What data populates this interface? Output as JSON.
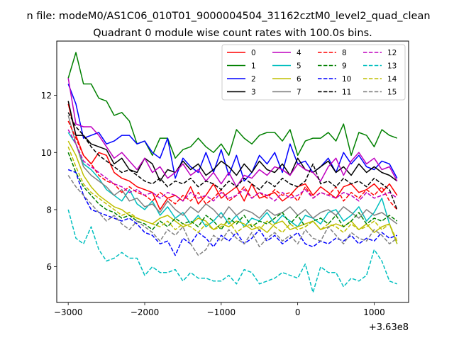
{
  "chart_data": {
    "type": "line",
    "suptitle": "n file: modeM0/AS1C06_010T01_9000004504_31162cztM0_level2_quad_clean",
    "title": "Quadrant 0 module wise count rates with 100.0s bins.",
    "xlabel": "",
    "ylabel": "",
    "x_offset_label": "+3.63e8",
    "xlim": [
      -3150,
      1450
    ],
    "ylim": [
      4.75,
      13.9
    ],
    "x_ticks": [
      -3000,
      -2000,
      -1000,
      0,
      1000
    ],
    "x_tick_labels": [
      "−3000",
      "−2000",
      "−1000",
      "0",
      "1000"
    ],
    "y_ticks": [
      6,
      8,
      10,
      12
    ],
    "y_tick_labels": [
      "6",
      "8",
      "10",
      "12"
    ],
    "grid": false,
    "legend_position": "top-right",
    "x_start": -3000,
    "x_step": 100,
    "series": [
      {
        "name": "0",
        "color": "#ff0000",
        "dash": "solid",
        "values": [
          11.7,
          10.6,
          9.9,
          9.6,
          10.0,
          9.9,
          9.3,
          9.1,
          9.0,
          8.8,
          8.7,
          8.6,
          8.0,
          8.4,
          8.5,
          8.3,
          8.8,
          8.2,
          8.5,
          8.9,
          8.4,
          8.6,
          8.8,
          8.3,
          8.9,
          8.4,
          8.5,
          8.6,
          8.3,
          8.5,
          8.8,
          8.9,
          8.5,
          8.8,
          8.6,
          8.4,
          8.8,
          8.9,
          8.6,
          8.7,
          8.9,
          8.6,
          8.9,
          8.5
        ]
      },
      {
        "name": "1",
        "color": "#008000",
        "dash": "solid",
        "values": [
          12.6,
          13.5,
          12.4,
          12.4,
          11.9,
          11.8,
          11.3,
          11.4,
          11.1,
          10.3,
          10.4,
          9.9,
          10.5,
          10.5,
          9.8,
          10.1,
          10.2,
          10.5,
          10.2,
          10.0,
          10.3,
          9.9,
          10.8,
          10.5,
          10.3,
          10.6,
          10.7,
          10.7,
          10.4,
          10.8,
          9.9,
          10.4,
          10.5,
          10.5,
          10.7,
          10.4,
          11.0,
          9.9,
          10.7,
          10.6,
          10.2,
          10.8,
          10.6,
          10.5
        ]
      },
      {
        "name": "2",
        "color": "#0000ff",
        "dash": "solid",
        "values": [
          12.4,
          11.7,
          10.5,
          10.6,
          10.7,
          10.3,
          10.4,
          10.6,
          10.6,
          10.3,
          10.4,
          10.0,
          9.8,
          10.5,
          9.1,
          9.8,
          9.5,
          9.3,
          10.0,
          9.3,
          10.1,
          9.2,
          9.9,
          9.0,
          9.3,
          9.9,
          9.6,
          10.0,
          9.3,
          10.3,
          9.6,
          9.7,
          9.3,
          9.5,
          9.8,
          9.3,
          10.0,
          9.6,
          9.9,
          9.5,
          9.4,
          9.7,
          9.6,
          9.1
        ]
      },
      {
        "name": "3",
        "color": "#000000",
        "dash": "solid",
        "values": [
          11.8,
          10.6,
          10.6,
          10.3,
          10.2,
          10.1,
          9.6,
          9.8,
          9.4,
          9.3,
          9.8,
          9.6,
          9.0,
          9.4,
          9.3,
          9.7,
          9.4,
          9.6,
          9.2,
          9.4,
          9.7,
          9.5,
          9.2,
          9.6,
          9.3,
          9.7,
          9.4,
          9.3,
          9.6,
          9.2,
          9.8,
          9.4,
          9.3,
          9.5,
          9.7,
          9.3,
          9.5,
          9.2,
          9.6,
          9.3,
          9.5,
          9.3,
          9.2,
          9.0
        ]
      },
      {
        "name": "4",
        "color": "#bf00bf",
        "dash": "solid",
        "values": [
          12.6,
          11.0,
          10.9,
          10.9,
          10.6,
          10.2,
          9.8,
          10.0,
          9.7,
          9.4,
          9.8,
          9.3,
          9.5,
          9.1,
          9.3,
          9.6,
          9.2,
          9.4,
          9.0,
          9.3,
          8.9,
          9.3,
          8.8,
          9.2,
          9.1,
          9.4,
          9.2,
          9.5,
          9.4,
          9.2,
          9.6,
          9.4,
          9.3,
          9.0,
          9.5,
          9.8,
          9.2,
          9.7,
          10.0,
          9.6,
          9.8,
          9.4,
          9.5,
          9.0
        ]
      },
      {
        "name": "5",
        "color": "#00bfbf",
        "dash": "solid",
        "values": [
          10.7,
          10.3,
          9.6,
          9.4,
          9.1,
          8.7,
          8.5,
          8.3,
          8.7,
          8.2,
          8.0,
          8.3,
          7.8,
          8.1,
          7.7,
          7.9,
          7.5,
          7.8,
          7.4,
          7.6,
          7.9,
          7.5,
          7.8,
          7.4,
          7.7,
          7.6,
          7.9,
          7.5,
          7.8,
          7.6,
          7.4,
          7.8,
          7.7,
          7.5,
          7.9,
          8.0,
          7.6,
          7.8,
          8.1,
          7.6,
          7.9,
          8.4,
          7.5,
          6.8
        ]
      },
      {
        "name": "6",
        "color": "#bfbf00",
        "dash": "solid",
        "values": [
          10.4,
          9.9,
          9.2,
          8.8,
          8.5,
          8.3,
          8.1,
          8.0,
          7.8,
          7.7,
          7.6,
          7.5,
          7.7,
          7.8,
          7.6,
          7.4,
          7.5,
          7.7,
          7.6,
          7.3,
          7.5,
          7.4,
          7.6,
          7.5,
          7.3,
          7.4,
          7.2,
          7.5,
          7.6,
          7.3,
          7.4,
          7.5,
          7.6,
          7.3,
          7.4,
          7.5,
          7.4,
          7.6,
          7.3,
          7.5,
          7.2,
          7.4,
          7.5,
          6.8
        ]
      },
      {
        "name": "7",
        "color": "#808080",
        "dash": "solid",
        "values": [
          11.3,
          10.3,
          9.5,
          9.2,
          9.0,
          8.8,
          8.5,
          8.7,
          8.3,
          8.4,
          8.1,
          8.2,
          7.9,
          8.3,
          8.0,
          7.8,
          8.1,
          7.9,
          8.2,
          8.0,
          7.7,
          8.1,
          7.8,
          8.0,
          7.9,
          7.7,
          8.0,
          7.8,
          7.9,
          8.1,
          7.8,
          8.0,
          7.7,
          7.9,
          8.0,
          7.8,
          8.1,
          7.9,
          7.7,
          8.0,
          7.8,
          7.9,
          7.7,
          7.5
        ]
      },
      {
        "name": "8",
        "color": "#ff0000",
        "dash": "dashed",
        "values": [
          11.1,
          10.5,
          9.9,
          9.6,
          9.2,
          9.0,
          8.9,
          8.6,
          8.8,
          8.6,
          8.5,
          8.3,
          8.6,
          8.4,
          8.2,
          8.5,
          8.3,
          8.6,
          8.2,
          8.4,
          8.7,
          8.3,
          8.5,
          8.8,
          8.4,
          8.6,
          8.4,
          8.7,
          8.5,
          8.6,
          8.3,
          8.8,
          8.4,
          8.6,
          8.5,
          8.8,
          8.3,
          8.6,
          8.4,
          8.7,
          8.5,
          8.8,
          8.3,
          8.0
        ]
      },
      {
        "name": "9",
        "color": "#008000",
        "dash": "dashed",
        "values": [
          10.0,
          9.3,
          8.8,
          8.5,
          8.2,
          8.0,
          7.9,
          7.7,
          7.8,
          7.6,
          7.5,
          7.3,
          7.6,
          7.4,
          7.7,
          7.5,
          7.6,
          7.4,
          7.8,
          7.6,
          7.3,
          7.7,
          7.5,
          7.8,
          7.4,
          7.6,
          7.5,
          7.7,
          7.9,
          7.5,
          7.8,
          7.4,
          7.6,
          7.7,
          7.5,
          7.8,
          7.4,
          7.6,
          7.9,
          7.5,
          7.7,
          7.6,
          7.8,
          7.6
        ]
      },
      {
        "name": "10",
        "color": "#0000ff",
        "dash": "dashed",
        "values": [
          9.4,
          9.3,
          8.5,
          8.0,
          7.9,
          7.8,
          7.7,
          7.6,
          7.7,
          7.5,
          7.2,
          7.1,
          6.8,
          6.9,
          6.4,
          7.0,
          6.8,
          7.2,
          7.0,
          6.7,
          7.1,
          6.9,
          7.2,
          6.8,
          7.0,
          7.3,
          6.9,
          7.1,
          6.8,
          7.0,
          7.2,
          6.8,
          6.7,
          6.9,
          6.8,
          7.0,
          6.9,
          7.1,
          6.8,
          7.0,
          6.9,
          7.2,
          7.0,
          7.1
        ]
      },
      {
        "name": "11",
        "color": "#000000",
        "dash": "dashed",
        "values": [
          11.4,
          10.9,
          10.6,
          10.2,
          9.9,
          9.7,
          9.5,
          9.3,
          9.4,
          9.2,
          9.0,
          8.9,
          9.1,
          8.8,
          9.0,
          8.9,
          9.1,
          8.8,
          9.0,
          8.9,
          8.7,
          9.0,
          8.8,
          9.1,
          8.9,
          8.7,
          9.0,
          8.8,
          9.1,
          8.9,
          8.8,
          9.0,
          9.6,
          8.9,
          9.0,
          8.8,
          9.1,
          8.9,
          9.0,
          8.8,
          9.1,
          8.9,
          8.7,
          8.0
        ]
      },
      {
        "name": "12",
        "color": "#bf00bf",
        "dash": "dashed",
        "values": [
          10.8,
          10.3,
          9.7,
          9.5,
          9.3,
          9.1,
          8.9,
          8.8,
          8.6,
          8.7,
          8.5,
          8.6,
          8.4,
          8.6,
          8.5,
          8.3,
          8.6,
          8.4,
          8.5,
          8.3,
          8.6,
          8.4,
          8.5,
          8.7,
          8.4,
          8.6,
          8.5,
          8.3,
          8.6,
          8.4,
          8.5,
          8.7,
          8.4,
          8.6,
          8.5,
          8.4,
          8.6,
          8.5,
          8.3,
          8.6,
          8.4,
          8.5,
          8.6,
          8.4
        ]
      },
      {
        "name": "13",
        "color": "#00bfbf",
        "dash": "dashed",
        "values": [
          8.0,
          7.0,
          6.8,
          7.4,
          6.6,
          6.2,
          6.3,
          6.5,
          6.3,
          6.3,
          5.7,
          6.0,
          5.8,
          5.8,
          5.9,
          5.5,
          5.8,
          5.6,
          5.6,
          5.5,
          5.5,
          5.7,
          5.4,
          5.9,
          5.8,
          5.4,
          5.5,
          5.6,
          5.8,
          5.7,
          5.6,
          6.1,
          5.1,
          6.0,
          5.8,
          5.8,
          5.3,
          5.6,
          5.5,
          5.7,
          6.6,
          6.2,
          5.5,
          5.4
        ]
      },
      {
        "name": "14",
        "color": "#bfbf00",
        "dash": "dashed",
        "values": [
          10.2,
          9.5,
          8.9,
          8.6,
          8.4,
          8.2,
          8.0,
          7.8,
          7.9,
          7.7,
          7.6,
          7.5,
          7.4,
          7.6,
          7.3,
          7.5,
          7.4,
          7.2,
          7.5,
          7.3,
          7.4,
          7.6,
          7.2,
          7.4,
          7.5,
          7.3,
          7.6,
          7.4,
          7.2,
          7.5,
          7.3,
          7.4,
          7.6,
          7.3,
          7.5,
          7.4,
          7.2,
          7.5,
          7.3,
          7.4,
          7.6,
          7.3,
          7.5,
          6.9
        ]
      },
      {
        "name": "15",
        "color": "#808080",
        "dash": "dashed",
        "values": [
          9.2,
          8.8,
          8.5,
          8.2,
          7.9,
          7.6,
          7.8,
          7.5,
          7.3,
          7.6,
          7.4,
          7.2,
          6.9,
          7.3,
          7.1,
          7.4,
          6.8,
          6.4,
          6.6,
          7.1,
          6.9,
          7.3,
          7.0,
          6.8,
          7.2,
          6.7,
          7.0,
          7.2,
          6.9,
          7.1,
          6.8,
          7.3,
          7.0,
          6.9,
          7.4,
          7.1,
          6.8,
          7.2,
          7.0,
          6.9,
          7.3,
          7.1,
          6.8,
          7.0
        ]
      }
    ]
  }
}
